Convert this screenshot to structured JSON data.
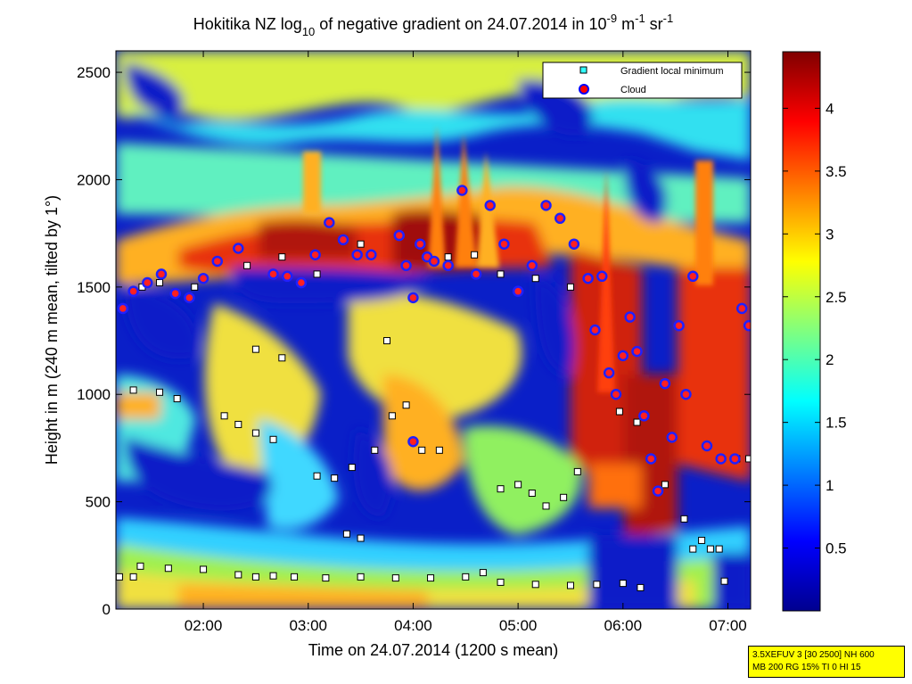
{
  "chart_data": {
    "type": "heatmap",
    "title_parts": {
      "prefix": "Hokitika NZ log",
      "sub": "10",
      "middle": " of negative gradient on 24.07.2014 in 10",
      "sup1": "-9",
      "unit_m": " m",
      "sup2": "-1",
      "unit_sr": " sr",
      "sup3": "-1"
    },
    "xlabel": "Time on 24.07.2014 (1200 s mean)",
    "ylabel": "Height in m (240 m mean, tilted by 1°)",
    "xlim": [
      "01:10",
      "07:13"
    ],
    "ylim": [
      0,
      2600
    ],
    "x_ticks": [
      "02:00",
      "03:00",
      "04:00",
      "05:00",
      "06:00",
      "07:00"
    ],
    "y_ticks": [
      0,
      500,
      1000,
      1500,
      2000,
      2500
    ],
    "colorbar": {
      "colormap": "jet",
      "range": [
        0,
        4.45
      ],
      "ticks": [
        "0.5",
        "1",
        "1.5",
        "2",
        "2.5",
        "3",
        "3.5",
        "4"
      ],
      "tick_values": [
        0.5,
        1,
        1.5,
        2,
        2.5,
        3,
        3.5,
        4
      ]
    },
    "legend": {
      "position": "top-right",
      "entries": [
        {
          "name": "Gradient local minimum",
          "marker": "square",
          "color": "#33ffff"
        },
        {
          "name": "Cloud",
          "marker": "circle",
          "color": "#ff0000",
          "edge": "#0000ff"
        }
      ]
    },
    "series": [
      {
        "name": "Cloud",
        "points": [
          [
            "01:14",
            1400
          ],
          [
            "01:20",
            1480
          ],
          [
            "01:28",
            1520
          ],
          [
            "01:36",
            1560
          ],
          [
            "01:44",
            1470
          ],
          [
            "01:52",
            1450
          ],
          [
            "02:00",
            1540
          ],
          [
            "02:08",
            1620
          ],
          [
            "02:20",
            1680
          ],
          [
            "02:40",
            1560
          ],
          [
            "02:48",
            1550
          ],
          [
            "02:56",
            1520
          ],
          [
            "03:04",
            1650
          ],
          [
            "03:12",
            1800
          ],
          [
            "03:20",
            1720
          ],
          [
            "03:28",
            1650
          ],
          [
            "03:36",
            1650
          ],
          [
            "03:52",
            1740
          ],
          [
            "03:56",
            1600
          ],
          [
            "04:00",
            1450
          ],
          [
            "04:04",
            1700
          ],
          [
            "04:08",
            1640
          ],
          [
            "04:12",
            1620
          ],
          [
            "04:20",
            1600
          ],
          [
            "04:28",
            1950
          ],
          [
            "04:36",
            1560
          ],
          [
            "04:44",
            1880
          ],
          [
            "04:52",
            1700
          ],
          [
            "05:00",
            1480
          ],
          [
            "05:08",
            1600
          ],
          [
            "05:16",
            1880
          ],
          [
            "05:24",
            1820
          ],
          [
            "05:32",
            1700
          ],
          [
            "05:40",
            1540
          ],
          [
            "05:44",
            1300
          ],
          [
            "05:48",
            1550
          ],
          [
            "05:52",
            1100
          ],
          [
            "05:56",
            1000
          ],
          [
            "06:00",
            1180
          ],
          [
            "06:04",
            1360
          ],
          [
            "06:08",
            1200
          ],
          [
            "06:12",
            900
          ],
          [
            "06:16",
            700
          ],
          [
            "06:20",
            550
          ],
          [
            "06:24",
            1050
          ],
          [
            "06:28",
            800
          ],
          [
            "06:32",
            1320
          ],
          [
            "06:36",
            1000
          ],
          [
            "06:40",
            1550
          ],
          [
            "06:48",
            760
          ],
          [
            "06:56",
            700
          ],
          [
            "07:04",
            700
          ],
          [
            "07:08",
            1400
          ],
          [
            "07:12",
            1320
          ],
          [
            "04:00",
            780
          ]
        ]
      },
      {
        "name": "Gradient local minimum",
        "points": [
          [
            "01:12",
            150
          ],
          [
            "01:20",
            150
          ],
          [
            "01:24",
            200
          ],
          [
            "01:40",
            190
          ],
          [
            "02:00",
            185
          ],
          [
            "02:20",
            160
          ],
          [
            "02:30",
            150
          ],
          [
            "02:40",
            155
          ],
          [
            "02:52",
            150
          ],
          [
            "03:10",
            145
          ],
          [
            "03:30",
            150
          ],
          [
            "03:50",
            145
          ],
          [
            "04:10",
            145
          ],
          [
            "04:30",
            150
          ],
          [
            "04:40",
            170
          ],
          [
            "04:50",
            125
          ],
          [
            "05:10",
            115
          ],
          [
            "05:30",
            110
          ],
          [
            "05:45",
            115
          ],
          [
            "06:00",
            120
          ],
          [
            "06:10",
            100
          ],
          [
            "01:20",
            1020
          ],
          [
            "01:35",
            1010
          ],
          [
            "01:45",
            980
          ],
          [
            "02:12",
            900
          ],
          [
            "02:20",
            860
          ],
          [
            "02:30",
            820
          ],
          [
            "02:40",
            790
          ],
          [
            "03:05",
            620
          ],
          [
            "03:15",
            610
          ],
          [
            "03:25",
            660
          ],
          [
            "03:38",
            740
          ],
          [
            "03:48",
            900
          ],
          [
            "03:56",
            950
          ],
          [
            "04:05",
            740
          ],
          [
            "04:15",
            740
          ],
          [
            "04:50",
            560
          ],
          [
            "05:00",
            580
          ],
          [
            "05:08",
            540
          ],
          [
            "05:16",
            480
          ],
          [
            "05:26",
            520
          ],
          [
            "05:34",
            640
          ],
          [
            "05:58",
            920
          ],
          [
            "06:08",
            870
          ],
          [
            "06:24",
            580
          ],
          [
            "06:35",
            420
          ],
          [
            "06:45",
            320
          ],
          [
            "06:55",
            280
          ],
          [
            "07:05",
            700
          ],
          [
            "07:12",
            700
          ],
          [
            "03:22",
            350
          ],
          [
            "03:30",
            330
          ],
          [
            "06:40",
            280
          ],
          [
            "06:50",
            280
          ],
          [
            "06:58",
            130
          ],
          [
            "02:30",
            1210
          ],
          [
            "02:45",
            1170
          ],
          [
            "03:45",
            1250
          ],
          [
            "01:25",
            1500
          ],
          [
            "01:35",
            1520
          ],
          [
            "01:55",
            1500
          ],
          [
            "02:25",
            1600
          ],
          [
            "02:45",
            1640
          ],
          [
            "03:05",
            1560
          ],
          [
            "03:30",
            1700
          ],
          [
            "04:20",
            1640
          ],
          [
            "04:35",
            1650
          ],
          [
            "04:50",
            1560
          ],
          [
            "05:10",
            1540
          ],
          [
            "05:30",
            1500
          ]
        ]
      }
    ]
  },
  "footer": {
    "line1": "3.5XEFUV 3 [30 2500] NH 600",
    "line2": "MB 200 RG 15% TI 0 HI 15"
  }
}
